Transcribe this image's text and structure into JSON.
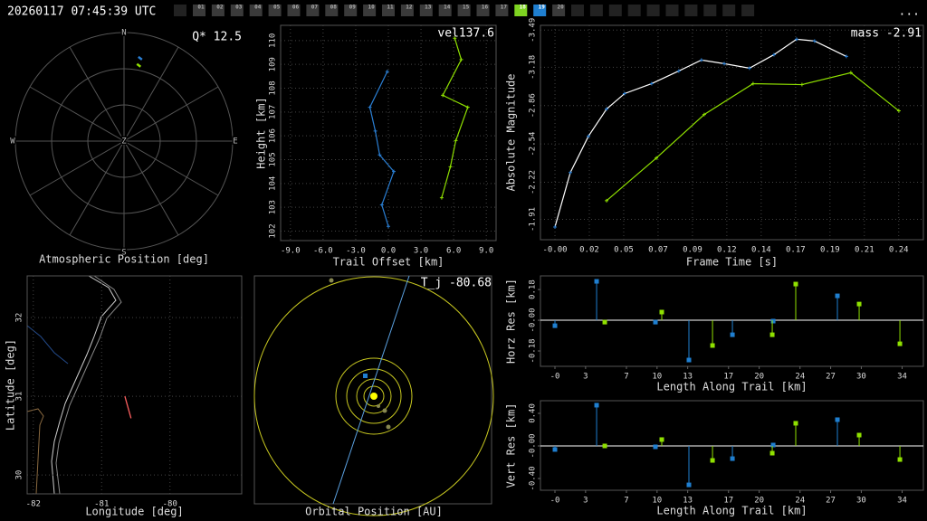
{
  "header": {
    "timestamp": "20260117 07:45:39 UTC",
    "tabs": [
      {
        "label": "01"
      },
      {
        "label": "02"
      },
      {
        "label": "03"
      },
      {
        "label": "04"
      },
      {
        "label": "05"
      },
      {
        "label": "06"
      },
      {
        "label": "07"
      },
      {
        "label": "08"
      },
      {
        "label": "09"
      },
      {
        "label": "10"
      },
      {
        "label": "11"
      },
      {
        "label": "12"
      },
      {
        "label": "13"
      },
      {
        "label": "14"
      },
      {
        "label": "15"
      },
      {
        "label": "16"
      },
      {
        "label": "17"
      },
      {
        "label": "18",
        "color": "#7ed321"
      },
      {
        "label": "19",
        "color": "#1f7fd0"
      },
      {
        "label": "20"
      }
    ],
    "menu": "..."
  },
  "chart_data": [
    {
      "type": "polar",
      "title": "Atmospheric Position [deg]",
      "annotation": "Q* 12.5",
      "directions": [
        "N",
        "E",
        "S",
        "W"
      ],
      "center_label": "Z",
      "rlim": [
        0,
        90
      ],
      "series": [
        {
          "color": "#2a7fd4",
          "azimuth": [
            11
          ],
          "zenith": [
            70
          ]
        },
        {
          "color": "#8fe000",
          "azimuth": [
            11
          ],
          "zenith": [
            64
          ]
        }
      ]
    },
    {
      "type": "line",
      "annotation": "vel137.6",
      "x_label": "Trail Offset [km]",
      "y_label": "Height [km]",
      "xlim": [
        -9.9,
        9.9
      ],
      "ylim": [
        101.6,
        110.64
      ],
      "grid": true,
      "xticks": [
        {
          "value": -9,
          "label": "-9.0"
        },
        {
          "value": -6,
          "label": "-6.0"
        },
        {
          "value": -3,
          "label": "-3.0"
        },
        {
          "value": 0,
          "label": "0.0"
        },
        {
          "value": 3,
          "label": "3.0"
        },
        {
          "value": 6,
          "label": "6.0"
        },
        {
          "value": 9,
          "label": "9.0"
        }
      ],
      "yticks": [
        102,
        103,
        104,
        105,
        106,
        107,
        108,
        109,
        110
      ],
      "series": [
        {
          "color": "#2a7fd4",
          "x": [
            -0.1,
            -1.7,
            -1.2,
            -0.8,
            0.5,
            -0.6,
            0
          ],
          "values": [
            108.7,
            107.2,
            106.2,
            105.2,
            104.5,
            103.1,
            102.2
          ]
        },
        {
          "color": "#8fe000",
          "x": [
            6.1,
            6.7,
            5.0,
            7.3,
            6.2,
            5.7,
            4.9
          ],
          "values": [
            110.1,
            109.2,
            107.7,
            107.2,
            105.8,
            104.7,
            103.4
          ]
        }
      ]
    },
    {
      "type": "line",
      "annotation": "mass -2.91",
      "x_label": "Frame Time [s]",
      "y_label": "Absolute Magnitude",
      "xlim": [
        -0.01,
        0.254
      ],
      "ylim": [
        -1.74,
        -3.53
      ],
      "grid": true,
      "xticks": [
        {
          "value": 0,
          "label": "-0.00"
        },
        {
          "value": 0.0237,
          "label": "0.02"
        },
        {
          "value": 0.0474,
          "label": "0.05"
        },
        {
          "value": 0.0711,
          "label": "0.07"
        },
        {
          "value": 0.0948,
          "label": "0.09"
        },
        {
          "value": 0.1185,
          "label": "0.12"
        },
        {
          "value": 0.1422,
          "label": "0.14"
        },
        {
          "value": 0.1659,
          "label": "0.17"
        },
        {
          "value": 0.1896,
          "label": "0.19"
        },
        {
          "value": 0.2133,
          "label": "0.21"
        },
        {
          "value": 0.237,
          "label": "0.24"
        }
      ],
      "yticks": [
        -3.49,
        -3.18,
        -2.86,
        -2.54,
        -2.22,
        -1.91
      ],
      "series": [
        {
          "color": "#ffffff",
          "marker_color": "#2a7fd4",
          "x": [
            0,
            0.0106,
            0.0231,
            0.0356,
            0.048,
            0.0667,
            0.0854,
            0.101,
            0.1167,
            0.1341,
            0.151,
            0.1666,
            0.179,
            0.2009
          ],
          "values": [
            -1.846,
            -2.301,
            -2.604,
            -2.831,
            -2.96,
            -3.043,
            -3.149,
            -3.24,
            -3.21,
            -3.172,
            -3.285,
            -3.414,
            -3.399,
            -3.27
          ]
        },
        {
          "color": "#8fe000",
          "marker_color": "#8fe000",
          "x": [
            0.0356,
            0.0699,
            0.1029,
            0.1366,
            0.1703,
            0.204,
            0.2371
          ],
          "values": [
            -2.066,
            -2.422,
            -2.785,
            -3.043,
            -3.035,
            -3.134,
            -2.816
          ]
        }
      ]
    },
    {
      "type": "map",
      "title": "Longitude [deg]",
      "y_label": "Latitude [deg]",
      "xlim": [
        -82.09,
        -78.95
      ],
      "ylim": [
        29.76,
        32.53
      ],
      "grid": true,
      "xticks": [
        -82,
        -81,
        -80
      ],
      "yticks": [
        30,
        31,
        32
      ],
      "series": [
        {
          "color": "#ff6060",
          "x": [
            -80.66,
            -80.57
          ],
          "values": [
            31.0,
            30.72
          ]
        }
      ]
    },
    {
      "type": "orbit",
      "title": "Orbital Position [AU]",
      "annotation": "T_j -80.68"
    },
    {
      "type": "stem",
      "x_label": "Length Along Trail [km]",
      "y_label": "Horz Res [km]",
      "xlim": [
        -1.42,
        36.08
      ],
      "ylim": [
        -0.27,
        0.26
      ],
      "xticks": [
        {
          "value": 0,
          "label": "-0"
        },
        3,
        7,
        10,
        13,
        17,
        20,
        24,
        27,
        30,
        34
      ],
      "yticks": [
        0.18,
        {
          "value": 0,
          "label": "-0.00"
        },
        -0.18
      ],
      "series": [
        {
          "color": "#1f7fd0",
          "x": [
            0,
            4.08,
            9.84,
            13.12,
            17.38,
            21.37,
            27.66
          ],
          "values": [
            -0.032,
            0.228,
            -0.011,
            -0.233,
            -0.085,
            -0.005,
            0.143
          ]
        },
        {
          "color": "#8fe000",
          "x": [
            4.88,
            10.46,
            15.43,
            21.28,
            23.58,
            29.79,
            33.78
          ],
          "values": [
            -0.011,
            0.048,
            -0.148,
            -0.085,
            0.212,
            0.095,
            -0.138
          ]
        }
      ]
    },
    {
      "type": "stem",
      "x_label": "Length Along Trail [km]",
      "y_label": "Vert Res [km]",
      "xlim": [
        -1.42,
        36.08
      ],
      "ylim": [
        -0.544,
        0.555
      ],
      "xticks": [
        {
          "value": 0,
          "label": "-0"
        },
        3,
        7,
        10,
        13,
        17,
        20,
        24,
        27,
        30,
        34
      ],
      "yticks": [
        {
          "value": 0.4,
          "label": "0.40"
        },
        {
          "value": 0,
          "label": "-0.00"
        },
        {
          "value": -0.4,
          "label": "-0.40"
        }
      ],
      "series": [
        {
          "color": "#1f7fd0",
          "x": [
            0,
            4.08,
            9.84,
            13.12,
            17.38,
            21.37,
            27.66
          ],
          "values": [
            -0.044,
            0.5,
            -0.011,
            -0.478,
            -0.156,
            0.011,
            0.322
          ]
        },
        {
          "color": "#8fe000",
          "x": [
            4.88,
            10.46,
            15.43,
            21.28,
            23.58,
            29.79,
            33.78
          ],
          "values": [
            0,
            0.078,
            -0.178,
            -0.089,
            0.278,
            0.133,
            -0.167
          ]
        }
      ]
    }
  ]
}
